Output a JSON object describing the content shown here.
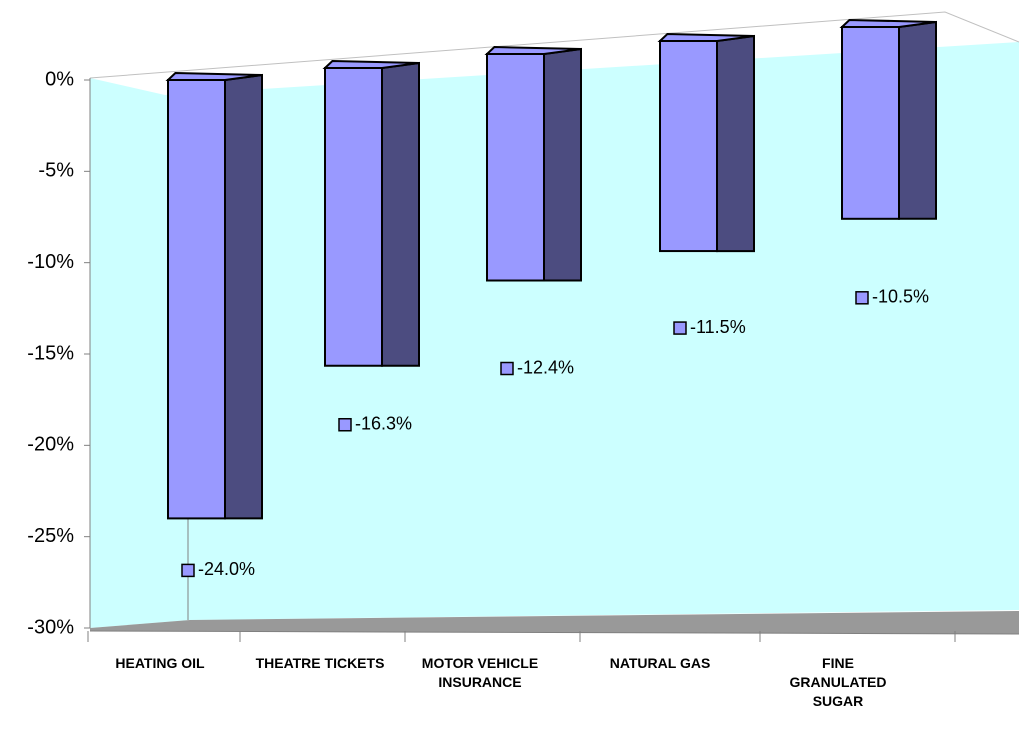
{
  "chart_data": {
    "type": "bar",
    "categories": [
      "HEATING OIL",
      "THEATRE TICKETS",
      "MOTOR VEHICLE INSURANCE",
      "NATURAL GAS",
      "FINE GRANULATED SUGAR"
    ],
    "values": [
      -24.0,
      -16.3,
      -12.4,
      -11.5,
      -10.5
    ],
    "value_labels": [
      "-24.0%",
      "-16.3%",
      "-12.4%",
      "-11.5%",
      "-10.5%"
    ],
    "color": "#9999ff",
    "ylim": [
      -30,
      0
    ],
    "yticks": [
      {
        "value": 0,
        "label": "0%"
      },
      {
        "value": -5,
        "label": "-5%"
      },
      {
        "value": -10,
        "label": "-10%"
      },
      {
        "value": -15,
        "label": "-15%"
      },
      {
        "value": -20,
        "label": "-20%"
      },
      {
        "value": -25,
        "label": "-25%"
      },
      {
        "value": -30,
        "label": "-30%"
      }
    ]
  }
}
